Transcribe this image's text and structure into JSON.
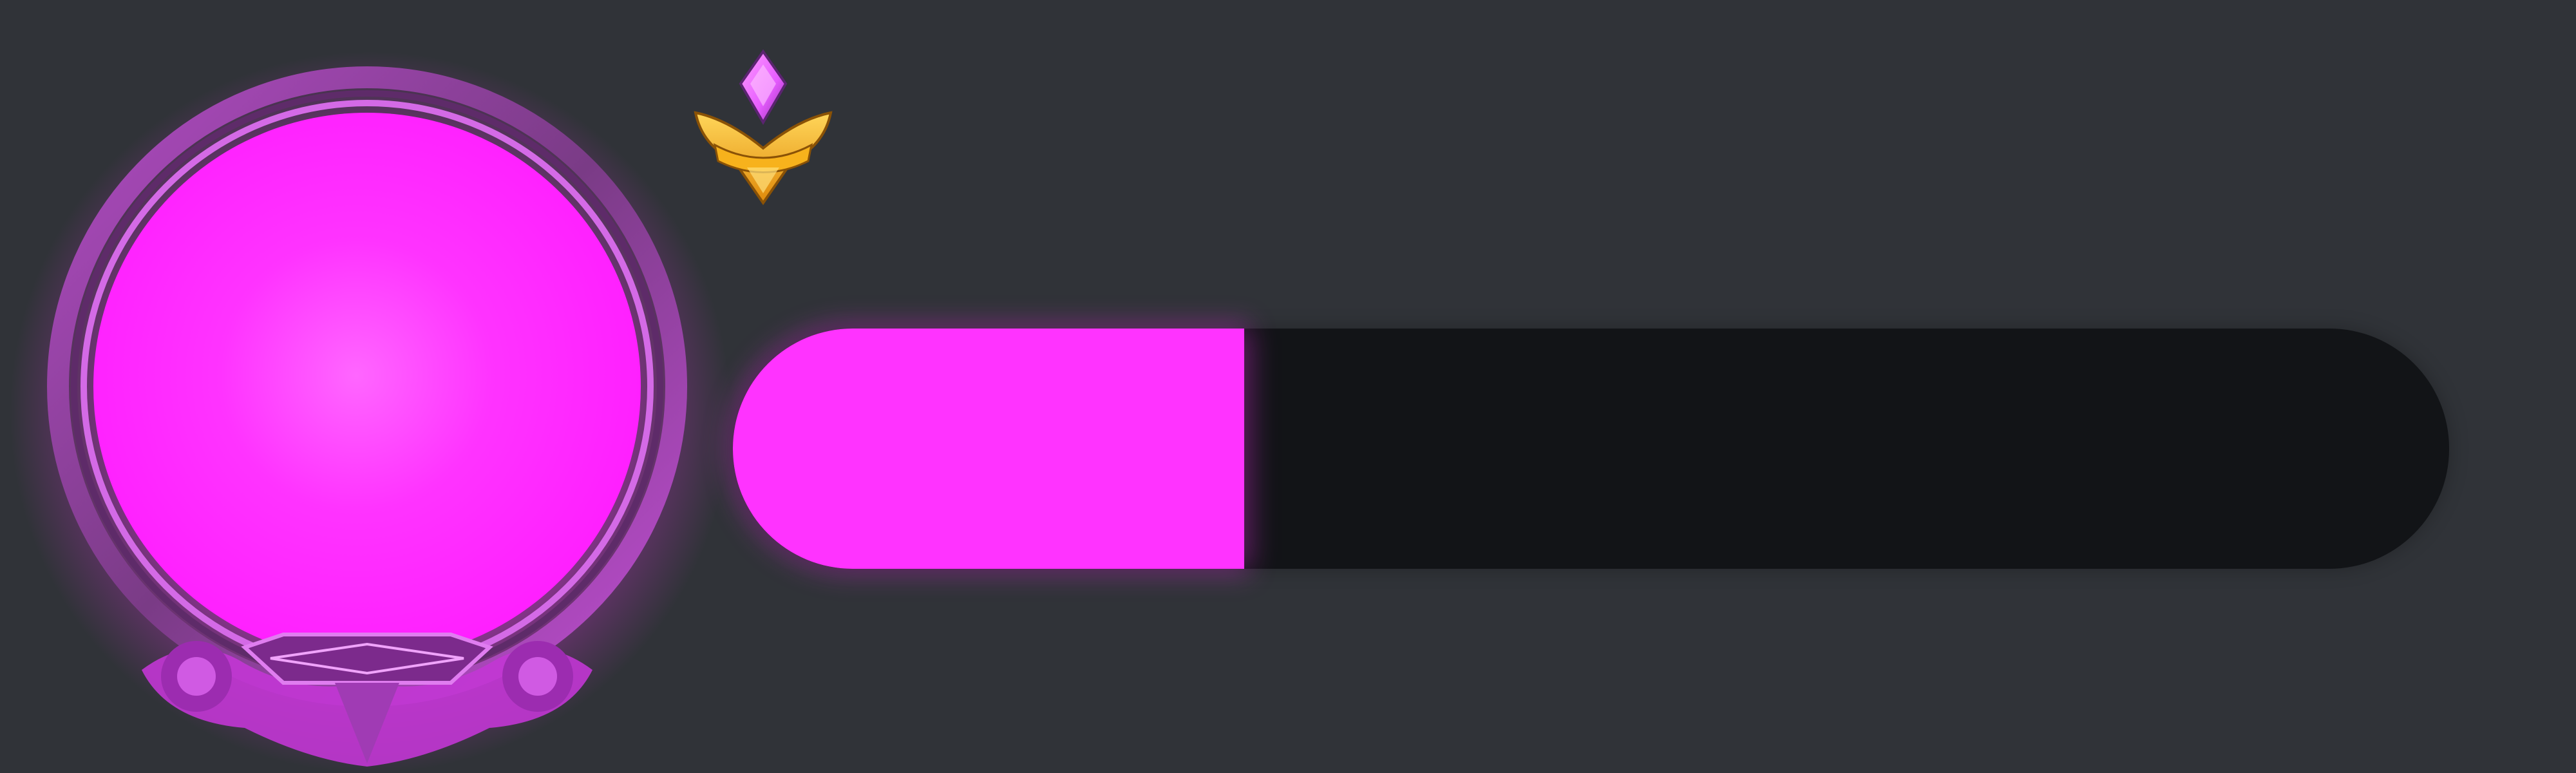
{
  "avatar": {
    "icon": "avatar-portrait-frame",
    "nameplate_text": "",
    "frame_color": "#ff33ff",
    "rim_color": "#7a3b86"
  },
  "rank": {
    "icon": "rank-badge-icon",
    "gem_color": "#e65cff",
    "wing_color": "#f5b41a"
  },
  "progress": {
    "fraction": 0.298,
    "fill_color": "#ff33ff",
    "track_color": "#121417"
  },
  "background": "#303338"
}
